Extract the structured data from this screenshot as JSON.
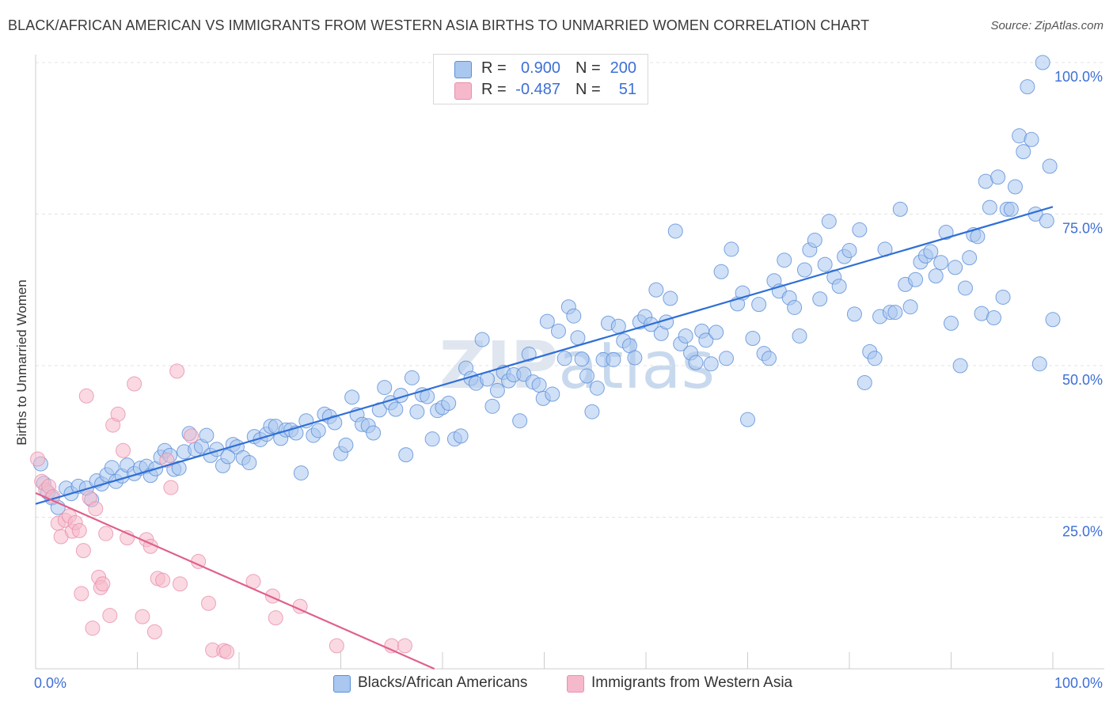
{
  "header": {
    "title": "BLACK/AFRICAN AMERICAN VS IMMIGRANTS FROM WESTERN ASIA BIRTHS TO UNMARRIED WOMEN CORRELATION CHART",
    "source": "Source: ZipAtlas.com"
  },
  "watermark": "ZIPatlas",
  "legend_top": {
    "rows": [
      {
        "r_label": "R =",
        "r_value": "0.900",
        "n_label": "N =",
        "n_value": "200"
      },
      {
        "r_label": "R =",
        "r_value": "-0.487",
        "n_label": "N =",
        "n_value": "51"
      }
    ]
  },
  "legend_bottom": {
    "items": [
      "Blacks/African Americans",
      "Immigrants from Western Asia"
    ]
  },
  "colors": {
    "blue_fill": "#a9c7ef",
    "blue_stroke": "#5b8fd9",
    "blue_line": "#2f6fd6",
    "pink_fill": "#f5b9cb",
    "pink_stroke": "#e990ab",
    "pink_line": "#e0608b",
    "axis_label": "#3d6fd6",
    "grid": "#e3e3e3"
  },
  "chart_data": {
    "type": "scatter",
    "title": "BLACK/AFRICAN AMERICAN VS IMMIGRANTS FROM WESTERN ASIA BIRTHS TO UNMARRIED WOMEN CORRELATION CHART",
    "xlabel": "",
    "ylabel": "Births to Unmarried Women",
    "xlim": [
      0,
      100
    ],
    "ylim": [
      0,
      100
    ],
    "x_tick_labels": [
      "0.0%",
      "100.0%"
    ],
    "y_tick_labels": [
      {
        "value": 25,
        "label": "25.0%"
      },
      {
        "value": 50,
        "label": "50.0%"
      },
      {
        "value": 75,
        "label": "75.0%"
      },
      {
        "value": 100,
        "label": "100.0%"
      }
    ],
    "grid": true,
    "legend_position": "top-center",
    "series": [
      {
        "name": "Blacks/African Americans",
        "R": 0.9,
        "N": 200,
        "trend": {
          "x": [
            0,
            100
          ],
          "y": [
            27.2,
            76.2
          ]
        },
        "points": [
          [
            0.5,
            33.8
          ],
          [
            0.8,
            30.6
          ],
          [
            1.2,
            29.1
          ],
          [
            1.6,
            28.2
          ],
          [
            2.2,
            26.6
          ],
          [
            3.0,
            29.8
          ],
          [
            3.5,
            28.9
          ],
          [
            4.2,
            30.1
          ],
          [
            5.0,
            29.8
          ],
          [
            5.5,
            27.9
          ],
          [
            6.0,
            31.0
          ],
          [
            6.5,
            30.5
          ],
          [
            7.0,
            32.0
          ],
          [
            7.5,
            33.2
          ],
          [
            7.9,
            30.9
          ],
          [
            8.5,
            31.8
          ],
          [
            9.0,
            33.6
          ],
          [
            9.7,
            32.2
          ],
          [
            10.3,
            33.1
          ],
          [
            10.9,
            33.4
          ],
          [
            11.3,
            31.9
          ],
          [
            11.8,
            33.0
          ],
          [
            12.3,
            34.9
          ],
          [
            12.7,
            36.0
          ],
          [
            13.2,
            35.2
          ],
          [
            13.6,
            32.9
          ],
          [
            14.1,
            33.1
          ],
          [
            14.6,
            35.8
          ],
          [
            15.1,
            38.8
          ],
          [
            15.7,
            36.2
          ],
          [
            16.3,
            36.7
          ],
          [
            16.8,
            38.5
          ],
          [
            17.2,
            35.2
          ],
          [
            17.8,
            36.2
          ],
          [
            18.4,
            33.5
          ],
          [
            18.9,
            35.0
          ],
          [
            19.4,
            37.0
          ],
          [
            19.8,
            36.6
          ],
          [
            20.4,
            34.8
          ],
          [
            21.0,
            34.0
          ],
          [
            21.5,
            38.3
          ],
          [
            22.1,
            37.8
          ],
          [
            22.7,
            38.7
          ],
          [
            23.1,
            40.0
          ],
          [
            23.6,
            40.0
          ],
          [
            24.1,
            38.0
          ],
          [
            24.6,
            39.4
          ],
          [
            25.1,
            39.4
          ],
          [
            25.6,
            38.9
          ],
          [
            26.1,
            32.3
          ],
          [
            26.6,
            40.9
          ],
          [
            27.3,
            38.5
          ],
          [
            27.8,
            39.3
          ],
          [
            28.4,
            42.0
          ],
          [
            28.9,
            41.6
          ],
          [
            29.4,
            40.6
          ],
          [
            30.0,
            35.5
          ],
          [
            30.5,
            36.9
          ],
          [
            31.1,
            44.8
          ],
          [
            31.6,
            41.9
          ],
          [
            32.1,
            40.3
          ],
          [
            32.7,
            40.1
          ],
          [
            33.2,
            38.9
          ],
          [
            33.8,
            42.7
          ],
          [
            34.3,
            46.4
          ],
          [
            34.9,
            43.9
          ],
          [
            35.4,
            42.8
          ],
          [
            35.9,
            45.1
          ],
          [
            36.4,
            35.3
          ],
          [
            37.0,
            48.0
          ],
          [
            37.5,
            42.4
          ],
          [
            38.0,
            45.2
          ],
          [
            38.5,
            44.9
          ],
          [
            39.0,
            37.9
          ],
          [
            39.5,
            42.6
          ],
          [
            40.0,
            43.1
          ],
          [
            40.6,
            43.8
          ],
          [
            41.2,
            37.9
          ],
          [
            41.8,
            38.4
          ],
          [
            42.3,
            49.6
          ],
          [
            42.8,
            47.9
          ],
          [
            43.3,
            47.1
          ],
          [
            43.9,
            54.3
          ],
          [
            44.4,
            47.8
          ],
          [
            44.9,
            43.3
          ],
          [
            45.4,
            45.9
          ],
          [
            46.0,
            48.9
          ],
          [
            46.5,
            47.5
          ],
          [
            47.0,
            48.5
          ],
          [
            47.6,
            40.9
          ],
          [
            48.0,
            48.6
          ],
          [
            48.5,
            51.9
          ],
          [
            48.9,
            47.3
          ],
          [
            49.5,
            46.8
          ],
          [
            49.9,
            44.6
          ],
          [
            50.3,
            57.3
          ],
          [
            50.8,
            45.3
          ],
          [
            51.4,
            55.7
          ],
          [
            52.0,
            51.2
          ],
          [
            52.4,
            59.7
          ],
          [
            52.9,
            58.2
          ],
          [
            53.3,
            54.6
          ],
          [
            53.7,
            51.1
          ],
          [
            54.2,
            48.3
          ],
          [
            54.7,
            42.4
          ],
          [
            55.2,
            46.3
          ],
          [
            55.8,
            51.0
          ],
          [
            56.3,
            57.0
          ],
          [
            56.8,
            51.0
          ],
          [
            57.3,
            56.5
          ],
          [
            57.8,
            54.1
          ],
          [
            58.4,
            53.3
          ],
          [
            58.9,
            51.3
          ],
          [
            59.4,
            57.2
          ],
          [
            59.9,
            58.1
          ],
          [
            60.5,
            56.8
          ],
          [
            61.0,
            62.5
          ],
          [
            61.5,
            55.3
          ],
          [
            62.0,
            57.2
          ],
          [
            62.4,
            61.1
          ],
          [
            62.9,
            72.2
          ],
          [
            63.4,
            53.6
          ],
          [
            63.9,
            54.9
          ],
          [
            64.4,
            52.1
          ],
          [
            64.9,
            50.5
          ],
          [
            65.5,
            55.7
          ],
          [
            65.9,
            54.2
          ],
          [
            66.4,
            50.3
          ],
          [
            66.9,
            55.5
          ],
          [
            67.4,
            65.5
          ],
          [
            67.9,
            51.2
          ],
          [
            68.4,
            69.2
          ],
          [
            69.0,
            60.2
          ],
          [
            69.5,
            62.0
          ],
          [
            70.0,
            41.1
          ],
          [
            70.5,
            54.5
          ],
          [
            71.1,
            60.1
          ],
          [
            71.6,
            52.0
          ],
          [
            72.1,
            51.2
          ],
          [
            72.6,
            64.0
          ],
          [
            73.1,
            62.3
          ],
          [
            73.6,
            67.4
          ],
          [
            74.1,
            61.2
          ],
          [
            74.6,
            59.6
          ],
          [
            75.1,
            54.9
          ],
          [
            75.6,
            65.8
          ],
          [
            76.1,
            69.1
          ],
          [
            76.6,
            70.7
          ],
          [
            77.1,
            61.0
          ],
          [
            77.6,
            66.7
          ],
          [
            78.0,
            73.8
          ],
          [
            78.5,
            64.6
          ],
          [
            79.0,
            63.1
          ],
          [
            79.5,
            68.0
          ],
          [
            80.0,
            69.0
          ],
          [
            80.5,
            58.5
          ],
          [
            81.0,
            72.4
          ],
          [
            81.5,
            47.2
          ],
          [
            82.0,
            52.3
          ],
          [
            82.5,
            51.2
          ],
          [
            83.0,
            58.1
          ],
          [
            83.5,
            69.2
          ],
          [
            84.0,
            58.8
          ],
          [
            84.5,
            58.8
          ],
          [
            85.0,
            75.8
          ],
          [
            85.5,
            63.4
          ],
          [
            86.0,
            59.7
          ],
          [
            86.5,
            64.2
          ],
          [
            87.0,
            67.1
          ],
          [
            87.5,
            68.1
          ],
          [
            88.0,
            68.8
          ],
          [
            88.5,
            64.8
          ],
          [
            89.0,
            67.0
          ],
          [
            89.5,
            72.0
          ],
          [
            90.0,
            57.0
          ],
          [
            90.4,
            66.2
          ],
          [
            90.9,
            50.0
          ],
          [
            91.4,
            62.8
          ],
          [
            91.8,
            67.8
          ],
          [
            92.2,
            71.6
          ],
          [
            92.6,
            71.3
          ],
          [
            93.0,
            58.6
          ],
          [
            93.4,
            80.4
          ],
          [
            93.8,
            76.1
          ],
          [
            94.2,
            57.9
          ],
          [
            94.6,
            81.1
          ],
          [
            95.1,
            61.3
          ],
          [
            95.5,
            75.8
          ],
          [
            95.9,
            75.8
          ],
          [
            96.3,
            79.5
          ],
          [
            96.7,
            87.9
          ],
          [
            97.1,
            85.3
          ],
          [
            97.5,
            96.0
          ],
          [
            97.9,
            87.3
          ],
          [
            98.3,
            75.0
          ],
          [
            98.7,
            50.3
          ],
          [
            99.0,
            100.0
          ],
          [
            99.4,
            73.9
          ],
          [
            99.7,
            82.9
          ],
          [
            100.0,
            57.6
          ]
        ]
      },
      {
        "name": "Immigrants from Western Asia",
        "R": -0.487,
        "N": 51,
        "trend": {
          "x": [
            0,
            39.2
          ],
          "y": [
            29.0,
            0.0
          ]
        },
        "points": [
          [
            0.2,
            34.6
          ],
          [
            0.6,
            30.9
          ],
          [
            1.0,
            29.5
          ],
          [
            1.3,
            30.1
          ],
          [
            1.7,
            28.4
          ],
          [
            2.2,
            24.0
          ],
          [
            2.5,
            21.8
          ],
          [
            2.9,
            24.5
          ],
          [
            3.3,
            25.2
          ],
          [
            3.6,
            22.7
          ],
          [
            3.9,
            24.1
          ],
          [
            4.3,
            22.8
          ],
          [
            4.5,
            12.4
          ],
          [
            4.7,
            19.5
          ],
          [
            5.0,
            45.0
          ],
          [
            5.3,
            28.2
          ],
          [
            5.6,
            6.7
          ],
          [
            5.9,
            26.4
          ],
          [
            6.2,
            15.1
          ],
          [
            6.4,
            13.4
          ],
          [
            6.6,
            14.0
          ],
          [
            6.9,
            22.3
          ],
          [
            7.3,
            8.8
          ],
          [
            7.6,
            40.2
          ],
          [
            8.1,
            42.0
          ],
          [
            8.6,
            36.0
          ],
          [
            9.0,
            21.6
          ],
          [
            9.7,
            47.0
          ],
          [
            10.5,
            8.6
          ],
          [
            10.9,
            21.3
          ],
          [
            11.3,
            20.2
          ],
          [
            11.7,
            6.1
          ],
          [
            12.0,
            14.9
          ],
          [
            12.5,
            14.6
          ],
          [
            12.9,
            34.4
          ],
          [
            13.3,
            29.9
          ],
          [
            13.9,
            49.1
          ],
          [
            14.2,
            14.0
          ],
          [
            15.3,
            38.4
          ],
          [
            16.0,
            17.7
          ],
          [
            17.0,
            10.8
          ],
          [
            17.4,
            3.1
          ],
          [
            18.5,
            3.0
          ],
          [
            18.8,
            2.8
          ],
          [
            21.4,
            14.4
          ],
          [
            23.3,
            12.0
          ],
          [
            23.6,
            8.4
          ],
          [
            26.0,
            10.3
          ],
          [
            29.6,
            3.8
          ],
          [
            35.0,
            3.8
          ],
          [
            36.3,
            3.8
          ]
        ]
      }
    ]
  }
}
